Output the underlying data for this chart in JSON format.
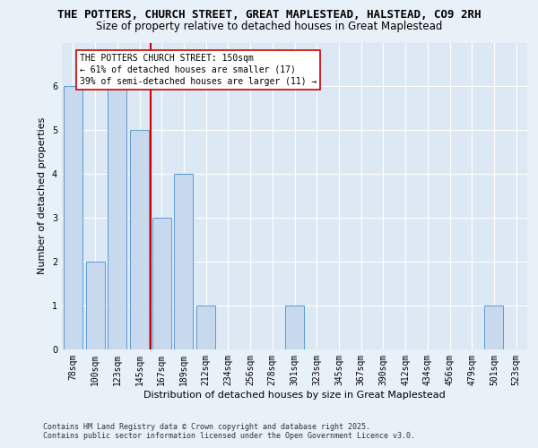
{
  "title_line1": "THE POTTERS, CHURCH STREET, GREAT MAPLESTEAD, HALSTEAD, CO9 2RH",
  "title_line2": "Size of property relative to detached houses in Great Maplestead",
  "xlabel": "Distribution of detached houses by size in Great Maplestead",
  "ylabel": "Number of detached properties",
  "categories": [
    "78sqm",
    "100sqm",
    "123sqm",
    "145sqm",
    "167sqm",
    "189sqm",
    "212sqm",
    "234sqm",
    "256sqm",
    "278sqm",
    "301sqm",
    "323sqm",
    "345sqm",
    "367sqm",
    "390sqm",
    "412sqm",
    "434sqm",
    "456sqm",
    "479sqm",
    "501sqm",
    "523sqm"
  ],
  "values": [
    6,
    2,
    6,
    5,
    3,
    4,
    1,
    0,
    0,
    0,
    1,
    0,
    0,
    0,
    0,
    0,
    0,
    0,
    0,
    1,
    0
  ],
  "bar_color": "#c8d9ed",
  "bar_edge_color": "#5b9bd5",
  "vline_x_index": 3.5,
  "vline_color": "#cc0000",
  "annotation_text": "THE POTTERS CHURCH STREET: 150sqm\n← 61% of detached houses are smaller (17)\n39% of semi-detached houses are larger (11) →",
  "annotation_box_color": "#ffffff",
  "annotation_box_edge_color": "#cc0000",
  "ylim": [
    0,
    7
  ],
  "yticks": [
    0,
    1,
    2,
    3,
    4,
    5,
    6,
    7
  ],
  "footer_line1": "Contains HM Land Registry data © Crown copyright and database right 2025.",
  "footer_line2": "Contains public sector information licensed under the Open Government Licence v3.0.",
  "bg_color": "#e8f0f8",
  "plot_bg_color": "#dce9f5",
  "grid_color": "#ffffff",
  "title_fontsize": 9,
  "subtitle_fontsize": 8.5,
  "axis_label_fontsize": 8,
  "tick_fontsize": 7,
  "annotation_fontsize": 7,
  "footer_fontsize": 6
}
